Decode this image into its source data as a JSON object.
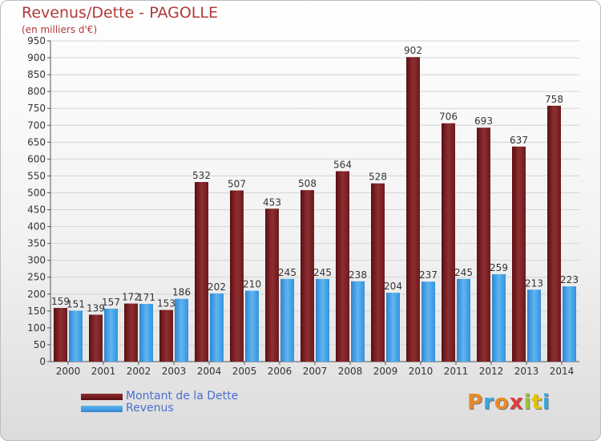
{
  "title": "Revenus/Dette - PAGOLLE",
  "subtitle": "(en milliers d'€)",
  "logo_text": "Proxiti",
  "logo_colors": [
    "#e8892b",
    "#3aa6d8",
    "#e8892b",
    "#e03a3a",
    "#9bc33b",
    "#e0c400",
    "#3aa6d8"
  ],
  "colors": {
    "dette": "#7a1f22",
    "revenus": "#3b9be3",
    "title": "#b03a3a",
    "legend_text": "#4a6fd0"
  },
  "chart_data": {
    "type": "bar",
    "title": "Revenus/Dette - PAGOLLE",
    "subtitle": "(en milliers d'€)",
    "categories": [
      "2000",
      "2001",
      "2002",
      "2003",
      "2004",
      "2005",
      "2006",
      "2007",
      "2008",
      "2009",
      "2010",
      "2011",
      "2012",
      "2013",
      "2014"
    ],
    "series": [
      {
        "name": "Montant de la Dette",
        "values": [
          159,
          139,
          172,
          153,
          532,
          507,
          453,
          508,
          564,
          528,
          902,
          706,
          693,
          637,
          758
        ]
      },
      {
        "name": "Revenus",
        "values": [
          151,
          157,
          171,
          186,
          202,
          210,
          245,
          245,
          238,
          204,
          237,
          245,
          259,
          213,
          223
        ]
      }
    ],
    "ylim": [
      0,
      950
    ],
    "yticks": [
      0,
      50,
      100,
      150,
      200,
      250,
      300,
      350,
      400,
      450,
      500,
      550,
      600,
      650,
      700,
      750,
      800,
      850,
      900,
      950
    ],
    "grid": true,
    "legend": "bottom-left"
  }
}
